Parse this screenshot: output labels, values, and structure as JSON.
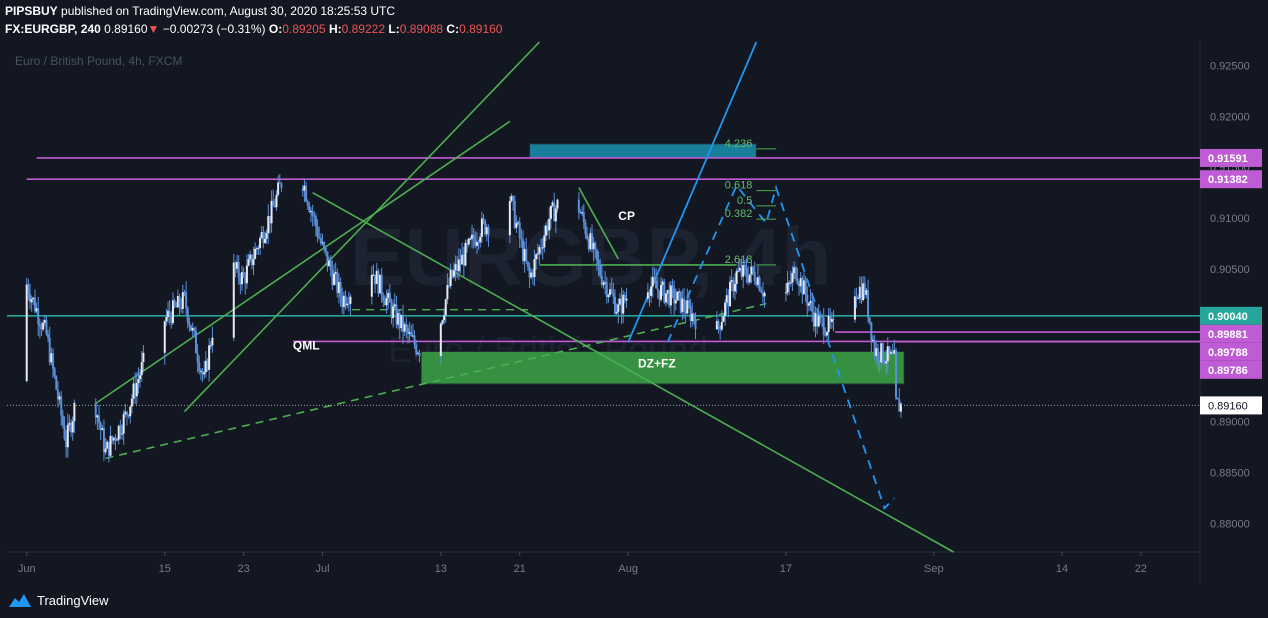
{
  "header": {
    "line1_user": "PIPSBUY",
    "line1_rest": "published on TradingView.com, August 30, 2020 18:25:53 UTC",
    "symbol": "FX:EURGBP, 240",
    "last": "0.89160",
    "change": "−0.00273 (−0.31%)",
    "o_label": "O:",
    "o_val": "0.89205",
    "h_label": "H:",
    "h_val": "0.89222",
    "l_label": "L:",
    "l_val": "0.89088",
    "c_label": "C:",
    "c_val": "0.89160"
  },
  "colors": {
    "background": "#131722",
    "candle": "#5b8fd9",
    "green_line": "#4caf50",
    "magenta": "#c05bd6",
    "teal": "#26a69a",
    "blue": "#2196f3",
    "zone": "#3a9d45"
  },
  "brand": {
    "name": "TradingView",
    "icon": "tradingview-logo-icon"
  },
  "chart_data": {
    "type": "candlestick",
    "title": "Euro / British Pound, 4h, FXCM",
    "watermark_symbol": "EURGBP, 4h",
    "watermark_name": "Euro / British Pound",
    "ylim": [
      0.8772,
      0.9273
    ],
    "xlim": [
      "2020-05-30",
      "2020-09-28"
    ],
    "y_ticks": [
      "0.92500",
      "0.92000",
      "0.91500",
      "0.91000",
      "0.90500",
      "0.90000",
      "0.89500",
      "0.89000",
      "0.88500",
      "0.88000"
    ],
    "x_ticks": [
      {
        "label": "Jun",
        "date": "2020-06-01"
      },
      {
        "label": "15",
        "date": "2020-06-15"
      },
      {
        "label": "23",
        "date": "2020-06-23"
      },
      {
        "label": "Jul",
        "date": "2020-07-01"
      },
      {
        "label": "13",
        "date": "2020-07-13"
      },
      {
        "label": "21",
        "date": "2020-07-21"
      },
      {
        "label": "Aug",
        "date": "2020-08-01"
      },
      {
        "label": "17",
        "date": "2020-08-17"
      },
      {
        "label": "Sep",
        "date": "2020-09-01"
      },
      {
        "label": "14",
        "date": "2020-09-14"
      },
      {
        "label": "22",
        "date": "2020-09-22"
      }
    ],
    "price_path": [
      [
        "2020-05-30",
        0.894
      ],
      [
        "2020-06-01",
        0.9035
      ],
      [
        "2020-06-03",
        0.8985
      ],
      [
        "2020-06-05",
        0.888
      ],
      [
        "2020-06-07",
        0.896
      ],
      [
        "2020-06-09",
        0.887
      ],
      [
        "2020-06-11",
        0.8905
      ],
      [
        "2020-06-14",
        0.899
      ],
      [
        "2020-06-17",
        0.902
      ],
      [
        "2020-06-19",
        0.894
      ],
      [
        "2020-06-21",
        0.906
      ],
      [
        "2020-06-23",
        0.904
      ],
      [
        "2020-06-26",
        0.911
      ],
      [
        "2020-06-28",
        0.917
      ],
      [
        "2020-07-01",
        0.907
      ],
      [
        "2020-07-03",
        0.902
      ],
      [
        "2020-07-06",
        0.905
      ],
      [
        "2020-07-08",
        0.901
      ],
      [
        "2020-07-10",
        0.898
      ],
      [
        "2020-07-12",
        0.896
      ],
      [
        "2020-07-14",
        0.904
      ],
      [
        "2020-07-17",
        0.909
      ],
      [
        "2020-07-19",
        0.91
      ],
      [
        "2020-07-20",
        0.912
      ],
      [
        "2020-07-22",
        0.904
      ],
      [
        "2020-07-24",
        0.91
      ],
      [
        "2020-07-26",
        0.913
      ],
      [
        "2020-07-27",
        0.911
      ],
      [
        "2020-07-29",
        0.905
      ],
      [
        "2020-07-31",
        0.901
      ],
      [
        "2020-08-02",
        0.904
      ],
      [
        "2020-08-04",
        0.903
      ],
      [
        "2020-08-06",
        0.902
      ],
      [
        "2020-08-08",
        0.9
      ],
      [
        "2020-08-10",
        0.899
      ],
      [
        "2020-08-12",
        0.9045
      ],
      [
        "2020-08-14",
        0.9045
      ],
      [
        "2020-08-16",
        0.9
      ],
      [
        "2020-08-18",
        0.905
      ],
      [
        "2020-08-20",
        0.9
      ],
      [
        "2020-08-22",
        0.899
      ],
      [
        "2020-08-24",
        0.903
      ],
      [
        "2020-08-25",
        0.903
      ],
      [
        "2020-08-26",
        0.897
      ],
      [
        "2020-08-28",
        0.896
      ],
      [
        "2020-08-28",
        0.8916
      ]
    ],
    "horizontal_levels": [
      {
        "price": "0.91591",
        "color": "#c05bd6"
      },
      {
        "price": "0.91382",
        "color": "#c05bd6"
      },
      {
        "price": "0.90040",
        "color": "#26a69a"
      },
      {
        "price": "0.89881",
        "color": "#c05bd6"
      },
      {
        "price": "0.89788",
        "color": "#c05bd6"
      },
      {
        "price": "0.89786",
        "color": "#c05bd6"
      }
    ],
    "current_price": "0.89160",
    "fib_levels": [
      {
        "label": "4.236",
        "price": 0.9168
      },
      {
        "label": "0.618",
        "price": 0.9127
      },
      {
        "label": "0.5",
        "price": 0.9112
      },
      {
        "label": "0.382",
        "price": 0.9099
      },
      {
        "label": "2.618",
        "price": 0.9054
      }
    ],
    "annotations": [
      {
        "text": "CP",
        "date": "2020-07-31",
        "price": 0.9098
      },
      {
        "text": "QML",
        "date": "2020-06-28",
        "price": 0.8971
      },
      {
        "text": "DZ+FZ",
        "date": "2020-08-02",
        "price": 0.8953
      }
    ],
    "zones": [
      {
        "name": "demand-zone",
        "from": "2020-07-11",
        "to": "2020-08-29",
        "low": 0.8937,
        "high": 0.8969,
        "color": "#3a9d45"
      },
      {
        "name": "supply-zone",
        "from": "2020-07-22",
        "to": "2020-08-14",
        "low": 0.9159,
        "high": 0.9173,
        "color": "#1b8aa6"
      }
    ]
  }
}
